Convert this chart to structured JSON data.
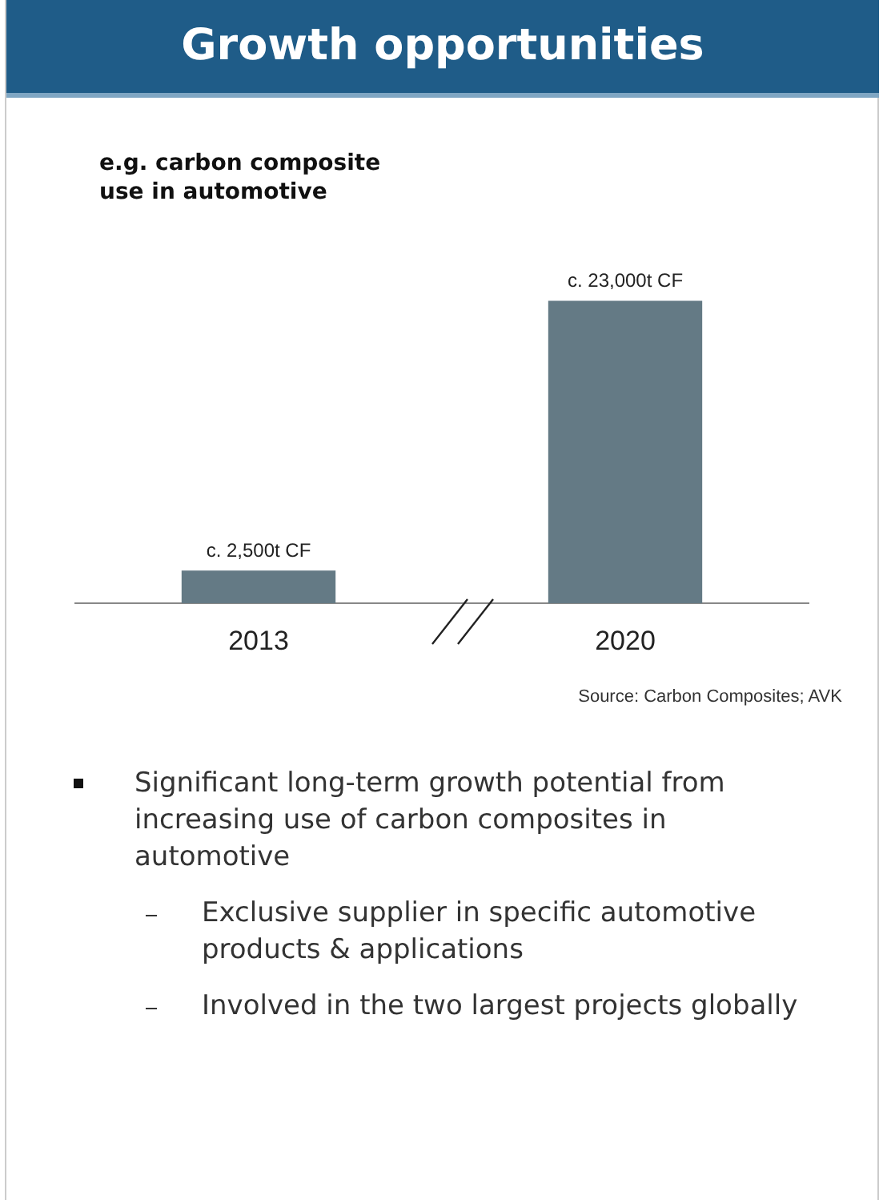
{
  "chart_data": {
    "type": "bar",
    "title": "Growth opportunities",
    "subtitle": "e.g. carbon composite use in automotive",
    "categories": [
      "2013",
      "2020"
    ],
    "values": [
      2500,
      23000
    ],
    "value_labels": [
      "c. 2,500t CF",
      "c. 23,000t CF"
    ],
    "color": "#647a85",
    "grid": false,
    "legend": false,
    "annotations": [
      "Source: Carbon Composites; AVK",
      "Significant long-term growth potential from increasing use of carbon composites in automotive",
      "Exclusive supplier in specific automotive products & applications",
      "Involved in the two largest projects globally"
    ]
  }
}
